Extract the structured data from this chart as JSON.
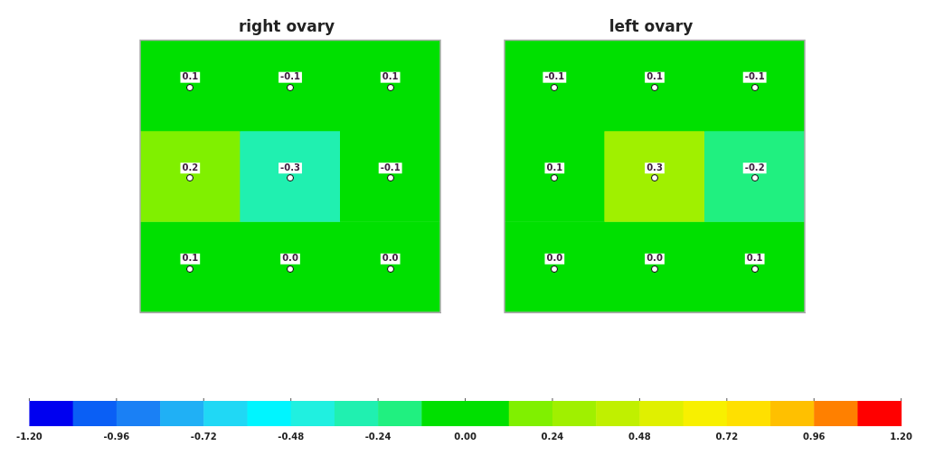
{
  "chart_data": [
    {
      "type": "heatmap",
      "title": "right ovary",
      "categories": [
        null,
        null,
        null
      ],
      "y_categories": [
        null,
        null,
        null
      ],
      "cells": [
        [
          0.1,
          -0.1,
          0.1
        ],
        [
          0.2,
          -0.3,
          -0.1
        ],
        [
          0.1,
          0.0,
          0.0
        ]
      ],
      "cell_labels": [
        [
          "0.1",
          "-0.1",
          "0.1"
        ],
        [
          "0.2",
          "-0.3",
          "-0.1"
        ],
        [
          "0.1",
          "0.0",
          "0.0"
        ]
      ],
      "clim": [
        -1.2,
        1.2
      ],
      "cticks": [
        {
          "value": -1.2,
          "label": "-1.20"
        },
        {
          "value": -0.96,
          "label": "-0.96"
        },
        {
          "value": -0.72,
          "label": "-0.72"
        },
        {
          "value": -0.48,
          "label": "-0.48"
        },
        {
          "value": -0.24,
          "label": "-0.24"
        },
        {
          "value": 0,
          "label": "0.00"
        },
        {
          "value": 0.24,
          "label": "0.24"
        },
        {
          "value": 0.48,
          "label": "0.48"
        },
        {
          "value": 0.72,
          "label": "0.72"
        },
        {
          "value": 0.96,
          "label": "0.96"
        },
        {
          "value": 1.2,
          "label": "1.20"
        }
      ]
    },
    {
      "type": "heatmap",
      "title": "left ovary",
      "categories": [
        null,
        null,
        null
      ],
      "y_categories": [
        null,
        null,
        null
      ],
      "cells": [
        [
          -0.1,
          0.1,
          -0.1
        ],
        [
          0.1,
          0.3,
          -0.2
        ],
        [
          0.0,
          0.0,
          0.1
        ]
      ],
      "cell_labels": [
        [
          "-0.1",
          "0.1",
          "-0.1"
        ],
        [
          "0.1",
          "0.3",
          "-0.2"
        ],
        [
          "0.0",
          "0.0",
          "0.1"
        ]
      ]
    }
  ]
}
